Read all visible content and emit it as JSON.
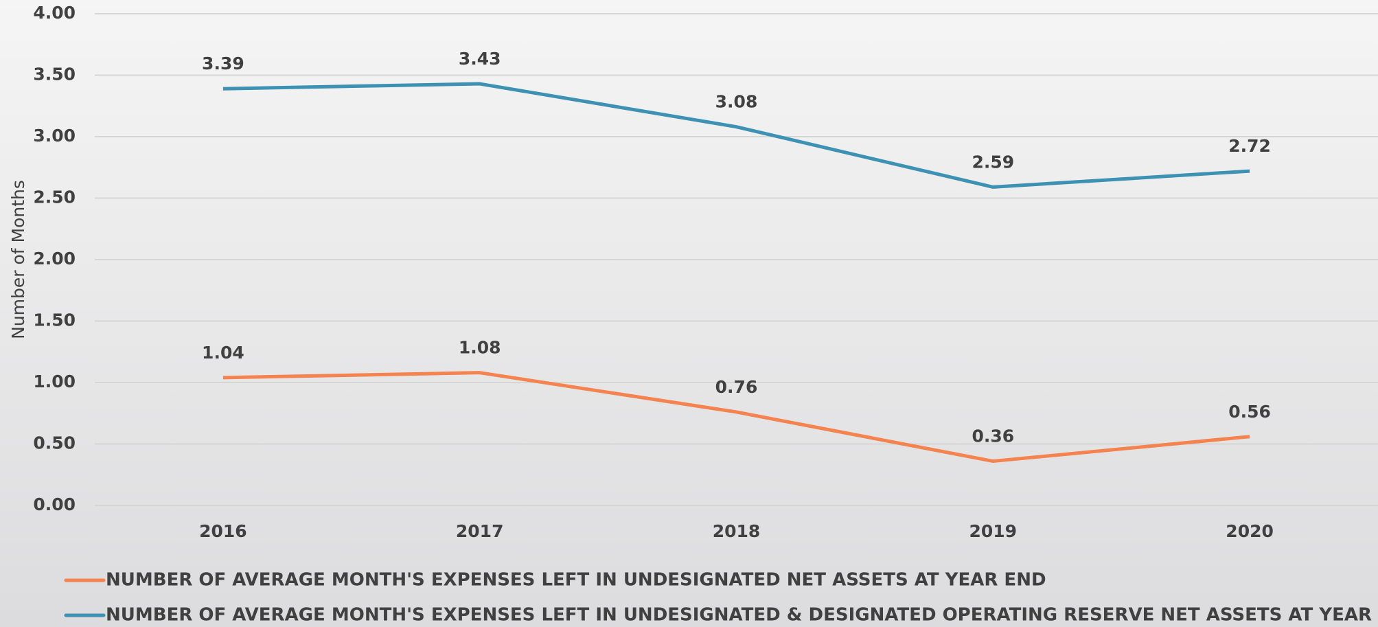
{
  "chart_data": {
    "type": "line",
    "y_label": "Number of Months",
    "categories": [
      "2016",
      "2017",
      "2018",
      "2019",
      "2020"
    ],
    "series": [
      {
        "name": "NUMBER OF AVERAGE MONTH'S EXPENSES LEFT IN UNDESIGNATED NET ASSETS AT YEAR END",
        "color": "#f4834f",
        "values": [
          1.04,
          1.08,
          0.76,
          0.36,
          0.56
        ]
      },
      {
        "name": "NUMBER OF AVERAGE MONTH'S EXPENSES LEFT IN UNDESIGNATED & DESIGNATED OPERATING RESERVE NET ASSETS AT YEAR END",
        "color": "#3d91b3",
        "values": [
          3.39,
          3.43,
          3.08,
          2.59,
          2.72
        ]
      }
    ],
    "ylim": [
      0,
      4
    ],
    "yticks": [
      {
        "value": 0,
        "label": "0.00"
      },
      {
        "value": 0.5,
        "label": "0.50"
      },
      {
        "value": 1,
        "label": "1.00"
      },
      {
        "value": 1.5,
        "label": "1.50"
      },
      {
        "value": 2,
        "label": "2.00"
      },
      {
        "value": 2.5,
        "label": "2.50"
      },
      {
        "value": 3,
        "label": "3.00"
      },
      {
        "value": 3.5,
        "label": "3.50"
      },
      {
        "value": 4,
        "label": "4.00"
      }
    ],
    "grid": true,
    "legend": "bottom"
  }
}
